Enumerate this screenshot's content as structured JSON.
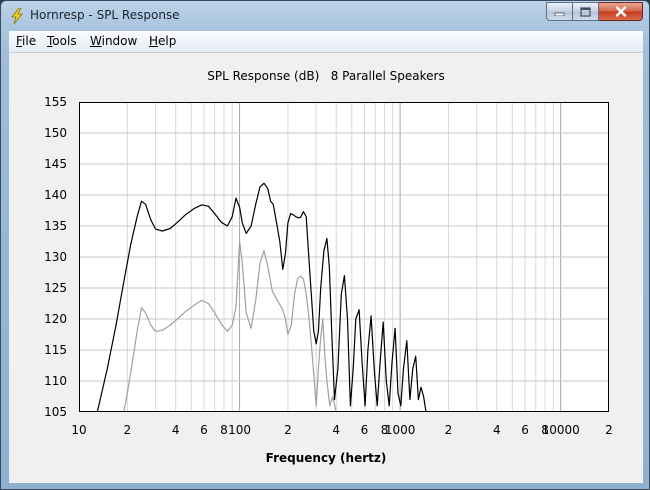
{
  "window": {
    "title": "Hornresp - SPL Response",
    "icon": "lightning-bolt-icon"
  },
  "caption_buttons": [
    "minimize-icon",
    "maximize-icon",
    "close-icon"
  ],
  "menu": {
    "items": [
      {
        "label": "File",
        "accel": "F",
        "rest": "ile"
      },
      {
        "label": "Tools",
        "accel": "T",
        "rest": "ools"
      },
      {
        "label": "Window",
        "accel": "W",
        "rest": "indow"
      },
      {
        "label": "Help",
        "accel": "H",
        "rest": "elp"
      }
    ]
  },
  "chart_data": {
    "type": "line",
    "title": "SPL Response (dB)   8 Parallel Speakers",
    "xlabel": "Frequency (hertz)",
    "ylabel": "",
    "x_scale": "log",
    "xlim": [
      10,
      20000
    ],
    "ylim": [
      105,
      155
    ],
    "y_ticks": [
      105,
      110,
      115,
      120,
      125,
      130,
      135,
      140,
      145,
      150,
      155
    ],
    "x_ticks": [
      {
        "f": 10,
        "label": "10"
      },
      {
        "f": 20,
        "label": "2"
      },
      {
        "f": 40,
        "label": "4"
      },
      {
        "f": 60,
        "label": "6"
      },
      {
        "f": 80,
        "label": "8"
      },
      {
        "f": 100,
        "label": "100"
      },
      {
        "f": 200,
        "label": "2"
      },
      {
        "f": 400,
        "label": "4"
      },
      {
        "f": 600,
        "label": "6"
      },
      {
        "f": 800,
        "label": "8"
      },
      {
        "f": 1000,
        "label": "1000"
      },
      {
        "f": 2000,
        "label": "2"
      },
      {
        "f": 4000,
        "label": "4"
      },
      {
        "f": 6000,
        "label": "6"
      },
      {
        "f": 8000,
        "label": "8"
      },
      {
        "f": 10000,
        "label": "10000"
      },
      {
        "f": 20000,
        "label": "2"
      }
    ],
    "grid": true,
    "background": "#ffffff",
    "series": [
      {
        "color": "#000000",
        "x": [
          13,
          15,
          17,
          19,
          21,
          23,
          24.5,
          26,
          28,
          30,
          33,
          37,
          41,
          46,
          52,
          58,
          64,
          70,
          77,
          84,
          90,
          95,
          100,
          104,
          110,
          118,
          126,
          134,
          142,
          150,
          156,
          162,
          170,
          178,
          186,
          193,
          200,
          208,
          216,
          224,
          232,
          240,
          250,
          260,
          270,
          280,
          290,
          300,
          310,
          320,
          335,
          350,
          362,
          375,
          390,
          410,
          430,
          450,
          470,
          490,
          510,
          530,
          555,
          580,
          605,
          630,
          660,
          690,
          720,
          750,
          785,
          820,
          855,
          890,
          930,
          970,
          1010,
          1050,
          1100,
          1150,
          1200,
          1250,
          1300,
          1350,
          1400,
          1450
        ],
        "y": [
          105,
          112,
          119,
          126,
          132,
          136.5,
          139,
          138.5,
          136,
          134.5,
          134.2,
          134.6,
          135.6,
          136.8,
          137.8,
          138.4,
          138.2,
          137,
          135.6,
          135,
          136.5,
          139.5,
          138,
          135.5,
          133.8,
          135,
          138.5,
          141.3,
          141.9,
          141,
          139,
          138.5,
          135.5,
          132.5,
          128,
          130.5,
          135.5,
          137,
          136.8,
          136.5,
          136.3,
          136.4,
          137.3,
          136.5,
          130,
          124,
          118,
          116,
          118,
          125,
          131,
          133,
          128.5,
          118,
          107,
          112,
          124,
          127,
          120,
          106,
          112,
          120,
          121.5,
          113,
          106,
          115,
          120.5,
          112,
          106,
          113,
          119.5,
          110,
          106,
          113,
          118.5,
          108,
          106,
          112,
          116.5,
          107,
          112,
          114,
          107,
          109,
          107.5,
          105
        ]
      },
      {
        "color": "#a0a0a0",
        "x": [
          19,
          20,
          21.5,
          23,
          24.5,
          26,
          28,
          30,
          33,
          37,
          41,
          46,
          52,
          58,
          64,
          70,
          77,
          84,
          90,
          95,
          100,
          104,
          110,
          118,
          126,
          134,
          142,
          150,
          160,
          172,
          186,
          193,
          200,
          210,
          220,
          230,
          240,
          250,
          260,
          270,
          280,
          290,
          300,
          310,
          320,
          330,
          340,
          350,
          365,
          380,
          400
        ],
        "y": [
          105,
          108,
          113,
          118,
          121.8,
          121,
          119,
          118,
          118.2,
          119,
          120,
          121.2,
          122.2,
          123,
          122.5,
          121,
          119.2,
          118,
          119,
          122,
          132.5,
          129,
          121,
          118.5,
          123,
          129,
          131,
          128.5,
          124.5,
          123,
          121.5,
          120,
          117.5,
          119,
          124,
          126.5,
          126.9,
          126.5,
          124,
          120.5,
          116,
          111,
          106,
          112,
          117,
          120,
          114,
          110,
          106,
          107.5,
          105
        ]
      }
    ]
  }
}
